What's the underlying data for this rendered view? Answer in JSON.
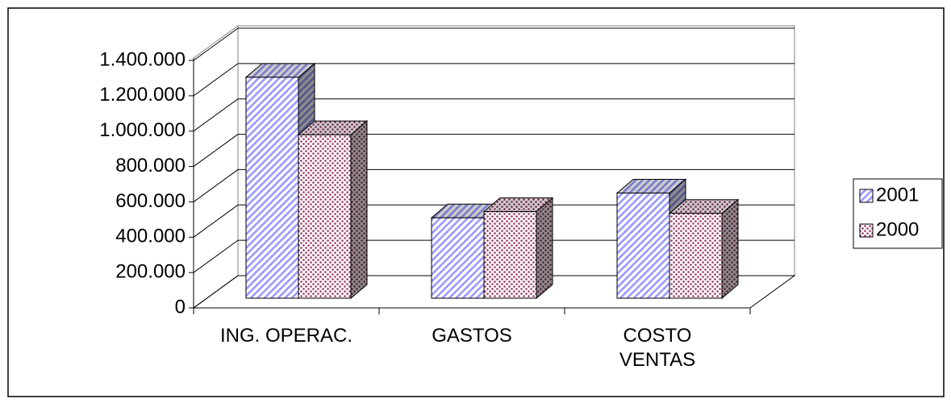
{
  "chart_data": {
    "type": "bar3d",
    "categories": [
      "ING. OPERAC.",
      "GASTOS",
      "COSTO\nVENTAS"
    ],
    "series": [
      {
        "name": "2001",
        "color": "#9999ff",
        "pattern": "stripes",
        "values": [
          1250000,
          455000,
          595000
        ]
      },
      {
        "name": "2000",
        "color": "#993366",
        "pattern": "dots",
        "values": [
          925000,
          490000,
          480000
        ]
      }
    ],
    "ylim": [
      0,
      1400000
    ],
    "yticks": [
      0,
      {
        "value": 200000,
        "label": "200.000"
      },
      {
        "value": 400000,
        "label": "400.000"
      },
      {
        "value": 600000,
        "label": "600.000"
      },
      {
        "value": 800000,
        "label": "800.000"
      },
      {
        "value": 1000000,
        "label": "1.000.000"
      },
      {
        "value": 1200000,
        "label": "1.200.000"
      },
      {
        "value": 1400000,
        "label": "1.400.000"
      }
    ],
    "grid": true,
    "legend": "right"
  }
}
